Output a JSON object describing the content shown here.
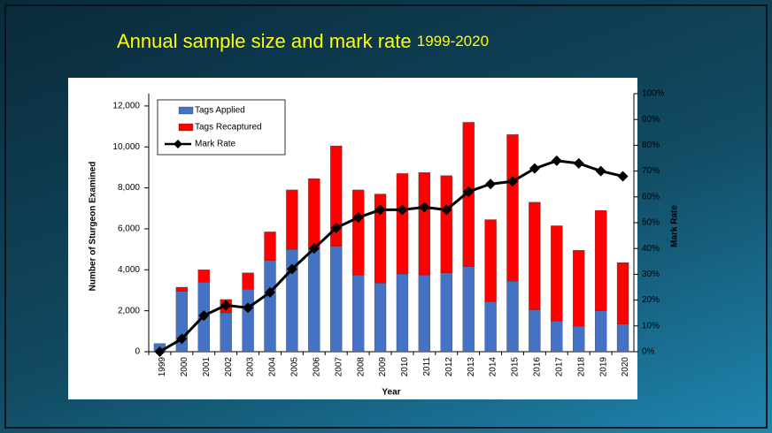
{
  "chart_data": {
    "type": "bar",
    "title": "Annual sample size and mark rate",
    "subtitle": "1999-2020",
    "x_label": "Year",
    "y_label": "Number of Sturgeon Examined",
    "y2_label": "Mark Rate",
    "categories": [
      "1999",
      "2000",
      "2001",
      "2002",
      "2003",
      "2004",
      "2005",
      "2006",
      "2007",
      "2008",
      "2009",
      "2010",
      "2011",
      "2012",
      "2013",
      "2014",
      "2015",
      "2016",
      "2017",
      "2018",
      "2019",
      "2020"
    ],
    "series": [
      {
        "name": "Tags Applied",
        "color": "#4472c4",
        "values": [
          400,
          2950,
          3400,
          1900,
          3050,
          4450,
          5000,
          5050,
          5150,
          3750,
          3350,
          3800,
          3750,
          3850,
          4150,
          2450,
          3450,
          2050,
          1500,
          1250,
          2000,
          1350
        ]
      },
      {
        "name": "Tags Recaptured",
        "color": "#ff0000",
        "values": [
          0,
          200,
          600,
          650,
          800,
          1400,
          2900,
          3400,
          4900,
          4150,
          4350,
          4900,
          5000,
          4750,
          7050,
          4000,
          7150,
          5250,
          4650,
          3700,
          4900,
          3000
        ]
      },
      {
        "name": "Mark Rate",
        "color": "#000000",
        "axis": "y2",
        "values": [
          0,
          5,
          14,
          18,
          17,
          23,
          32,
          40,
          48,
          52,
          55,
          55,
          56,
          55,
          62,
          65,
          66,
          71,
          74,
          73,
          70,
          68
        ]
      }
    ],
    "stacked": true,
    "ylim": [
      0,
      12600
    ],
    "yticks": [
      0,
      {
        "value": 2000,
        "label": "2,000"
      },
      {
        "value": 4000,
        "label": "4,000"
      },
      {
        "value": 6000,
        "label": "6,000"
      },
      {
        "value": 8000,
        "label": "8,000"
      },
      {
        "value": 10000,
        "label": "10,000"
      },
      {
        "value": 12000,
        "label": "12,000"
      }
    ],
    "y2lim": [
      0,
      100
    ],
    "y2ticks": [
      {
        "value": 0,
        "label": "0%"
      },
      {
        "value": 10,
        "label": "10%"
      },
      {
        "value": 20,
        "label": "20%"
      },
      {
        "value": 30,
        "label": "30%"
      },
      {
        "value": 40,
        "label": "40%"
      },
      {
        "value": 50,
        "label": "50%"
      },
      {
        "value": 60,
        "label": "60%"
      },
      {
        "value": 70,
        "label": "70%"
      },
      {
        "value": 80,
        "label": "80%"
      },
      {
        "value": 90,
        "label": "90%"
      },
      {
        "value": 100,
        "label": "100%"
      }
    ],
    "legend": "upper left"
  }
}
